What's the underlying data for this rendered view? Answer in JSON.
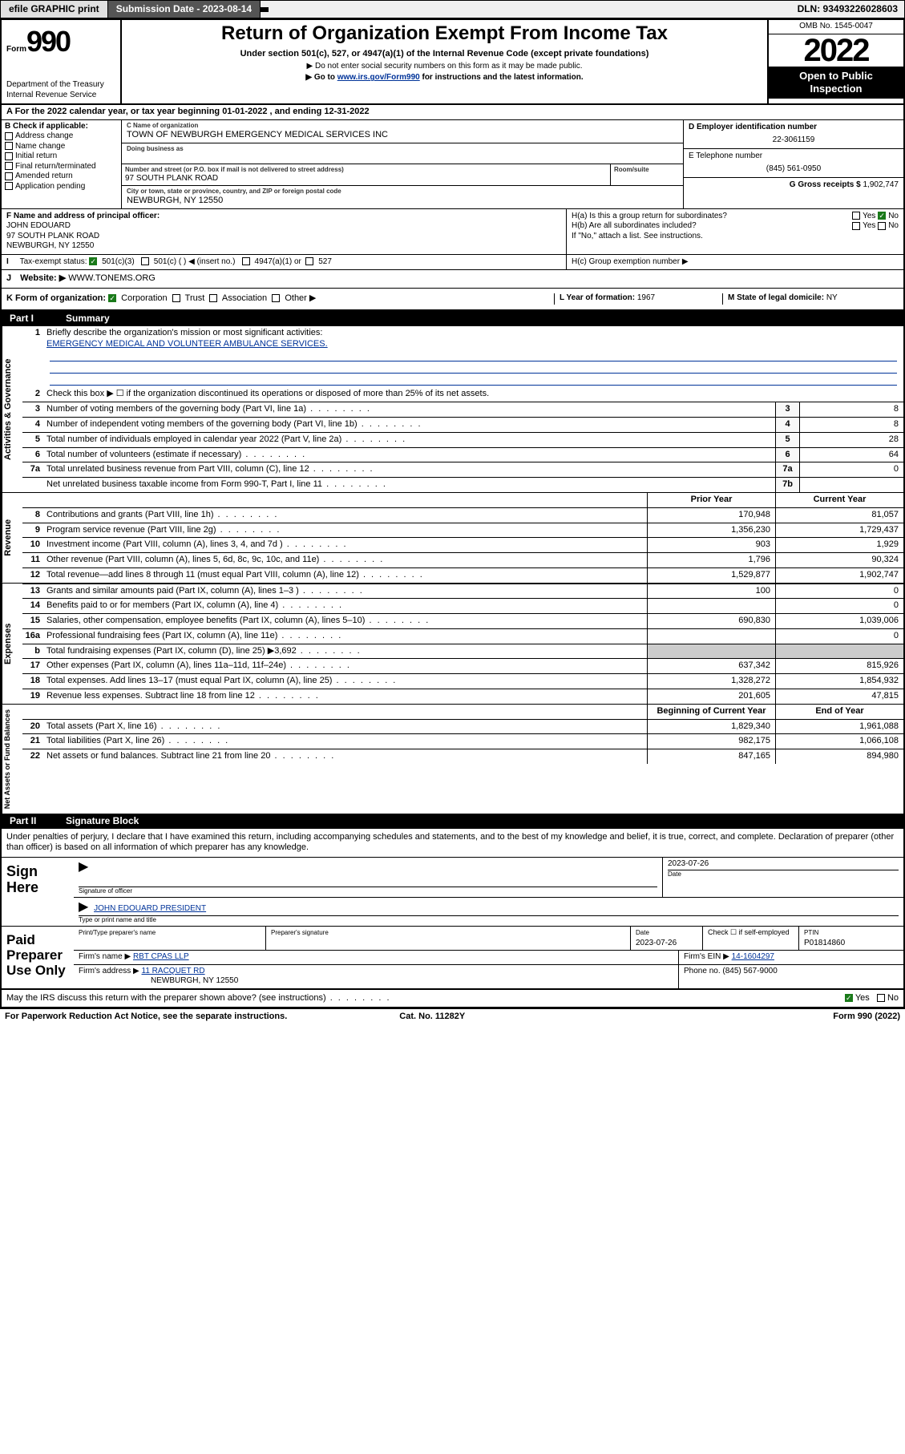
{
  "meta": {
    "omb": "OMB No. 1545-0047",
    "dln": "DLN: 93493226028603",
    "submission_label": "Submission Date - 2023-08-14",
    "efile_label": "efile GRAPHIC print",
    "tax_year": "2022",
    "open_to_public": "Open to Public Inspection"
  },
  "hdr": {
    "form_label": "Form",
    "form_no": "990",
    "dept": "Department of the Treasury",
    "irs": "Internal Revenue Service",
    "title": "Return of Organization Exempt From Income Tax",
    "sub": "Under section 501(c), 527, or 4947(a)(1) of the Internal Revenue Code (except private foundations)",
    "note1": "▶ Do not enter social security numbers on this form as it may be made public.",
    "note2_pre": "▶ Go to ",
    "note2_link": "www.irs.gov/Form990",
    "note2_post": " for instructions and the latest information."
  },
  "rowA": "A For the 2022 calendar year, or tax year beginning 01-01-2022   , and ending 12-31-2022",
  "colB": {
    "hdr": "B Check if applicable:",
    "opts": [
      "Address change",
      "Name change",
      "Initial return",
      "Final return/terminated",
      "Amended return",
      "Application pending"
    ]
  },
  "colC": {
    "name_lbl": "C Name of organization",
    "name": "TOWN OF NEWBURGH EMERGENCY MEDICAL SERVICES INC",
    "dba_lbl": "Doing business as",
    "addr_lbl": "Number and street (or P.O. box if mail is not delivered to street address)",
    "addr": "97 SOUTH PLANK ROAD",
    "room_lbl": "Room/suite",
    "city_lbl": "City or town, state or province, country, and ZIP or foreign postal code",
    "city": "NEWBURGH, NY  12550"
  },
  "colD": {
    "ein_lbl": "D Employer identification number",
    "ein": "22-3061159",
    "phone_lbl": "E Telephone number",
    "phone": "(845) 561-0950",
    "gross_lbl": "G Gross receipts $",
    "gross": "1,902,747"
  },
  "rowF": {
    "lbl": "F Name and address of principal officer:",
    "name": "JOHN EDOUARD",
    "addr1": "97 SOUTH PLANK ROAD",
    "addr2": "NEWBURGH, NY  12550"
  },
  "rowH": {
    "a": "H(a)  Is this a group return for subordinates?",
    "a_ans": "No",
    "b": "H(b)  Are all subordinates included?",
    "b_note": "If \"No,\" attach a list. See instructions.",
    "c": "H(c)  Group exemption number ▶"
  },
  "rowI": {
    "lbl": "Tax-exempt status:",
    "c3": "501(c)(3)",
    "cins": "501(c) (  ) ◀ (insert no.)",
    "c4947": "4947(a)(1) or",
    "c527": "527"
  },
  "rowJ": {
    "lbl": "Website: ▶",
    "val": "WWW.TONEMS.ORG"
  },
  "rowK": {
    "lbl": "K Form of organization:",
    "corp": "Corporation",
    "trust": "Trust",
    "assoc": "Association",
    "other": "Other ▶"
  },
  "rowL": {
    "lbl": "L Year of formation:",
    "val": "1967"
  },
  "rowM": {
    "lbl": "M State of legal domicile:",
    "val": "NY"
  },
  "parts": {
    "p1": "Part I",
    "p1t": "Summary",
    "p2": "Part II",
    "p2t": "Signature Block"
  },
  "summary": {
    "tabs": [
      "Activities & Governance",
      "Revenue",
      "Expenses",
      "Net Assets or Fund Balances"
    ],
    "q1": "Briefly describe the organization's mission or most significant activities:",
    "mission": "EMERGENCY MEDICAL AND VOLUNTEER AMBULANCE SERVICES.",
    "q2": "Check this box ▶ ☐  if the organization discontinued its operations or disposed of more than 25% of its net assets.",
    "lines_ag": [
      {
        "n": "3",
        "d": "Number of voting members of the governing body (Part VI, line 1a)",
        "box": "3",
        "v": "8"
      },
      {
        "n": "4",
        "d": "Number of independent voting members of the governing body (Part VI, line 1b)",
        "box": "4",
        "v": "8"
      },
      {
        "n": "5",
        "d": "Total number of individuals employed in calendar year 2022 (Part V, line 2a)",
        "box": "5",
        "v": "28"
      },
      {
        "n": "6",
        "d": "Total number of volunteers (estimate if necessary)",
        "box": "6",
        "v": "64"
      },
      {
        "n": "7a",
        "d": "Total unrelated business revenue from Part VIII, column (C), line 12",
        "box": "7a",
        "v": "0"
      },
      {
        "n": "",
        "d": "Net unrelated business taxable income from Form 990-T, Part I, line 11",
        "box": "7b",
        "v": ""
      }
    ],
    "col_prior": "Prior Year",
    "col_curr": "Current Year",
    "col_beg": "Beginning of Current Year",
    "col_end": "End of Year",
    "lines_rev": [
      {
        "n": "8",
        "d": "Contributions and grants (Part VIII, line 1h)",
        "p": "170,948",
        "c": "81,057"
      },
      {
        "n": "9",
        "d": "Program service revenue (Part VIII, line 2g)",
        "p": "1,356,230",
        "c": "1,729,437"
      },
      {
        "n": "10",
        "d": "Investment income (Part VIII, column (A), lines 3, 4, and 7d )",
        "p": "903",
        "c": "1,929"
      },
      {
        "n": "11",
        "d": "Other revenue (Part VIII, column (A), lines 5, 6d, 8c, 9c, 10c, and 11e)",
        "p": "1,796",
        "c": "90,324"
      },
      {
        "n": "12",
        "d": "Total revenue—add lines 8 through 11 (must equal Part VIII, column (A), line 12)",
        "p": "1,529,877",
        "c": "1,902,747"
      }
    ],
    "lines_exp": [
      {
        "n": "13",
        "d": "Grants and similar amounts paid (Part IX, column (A), lines 1–3 )",
        "p": "100",
        "c": "0"
      },
      {
        "n": "14",
        "d": "Benefits paid to or for members (Part IX, column (A), line 4)",
        "p": "",
        "c": "0"
      },
      {
        "n": "15",
        "d": "Salaries, other compensation, employee benefits (Part IX, column (A), lines 5–10)",
        "p": "690,830",
        "c": "1,039,006"
      },
      {
        "n": "16a",
        "d": "Professional fundraising fees (Part IX, column (A), line 11e)",
        "p": "",
        "c": "0"
      },
      {
        "n": "b",
        "d": "Total fundraising expenses (Part IX, column (D), line 25) ▶3,692",
        "p": "shade",
        "c": "shade"
      },
      {
        "n": "17",
        "d": "Other expenses (Part IX, column (A), lines 11a–11d, 11f–24e)",
        "p": "637,342",
        "c": "815,926"
      },
      {
        "n": "18",
        "d": "Total expenses. Add lines 13–17 (must equal Part IX, column (A), line 25)",
        "p": "1,328,272",
        "c": "1,854,932"
      },
      {
        "n": "19",
        "d": "Revenue less expenses. Subtract line 18 from line 12",
        "p": "201,605",
        "c": "47,815"
      }
    ],
    "lines_na": [
      {
        "n": "20",
        "d": "Total assets (Part X, line 16)",
        "p": "1,829,340",
        "c": "1,961,088"
      },
      {
        "n": "21",
        "d": "Total liabilities (Part X, line 26)",
        "p": "982,175",
        "c": "1,066,108"
      },
      {
        "n": "22",
        "d": "Net assets or fund balances. Subtract line 21 from line 20",
        "p": "847,165",
        "c": "894,980"
      }
    ]
  },
  "sig": {
    "decl": "Under penalties of perjury, I declare that I have examined this return, including accompanying schedules and statements, and to the best of my knowledge and belief, it is true, correct, and complete. Declaration of preparer (other than officer) is based on all information of which preparer has any knowledge.",
    "sign_here": "Sign Here",
    "sig_officer_lbl": "Signature of officer",
    "date_lbl": "Date",
    "sig_date": "2023-07-26",
    "name_title_lbl": "Type or print name and title",
    "name_title": "JOHN EDOUARD PRESIDENT",
    "paid_hdr": "Paid Preparer Use Only",
    "print_name_lbl": "Print/Type preparer's name",
    "prep_sig_lbl": "Preparer's signature",
    "prep_date_lbl": "Date",
    "prep_date": "2023-07-26",
    "self_emp_lbl": "Check ☐ if self-employed",
    "ptin_lbl": "PTIN",
    "ptin": "P01814860",
    "firm_name_lbl": "Firm's name    ▶",
    "firm_name": "RBT CPAS LLP",
    "firm_ein_lbl": "Firm's EIN ▶",
    "firm_ein": "14-1604297",
    "firm_addr_lbl": "Firm's address ▶",
    "firm_addr1": "11 RACQUET RD",
    "firm_addr2": "NEWBURGH, NY  12550",
    "firm_phone_lbl": "Phone no.",
    "firm_phone": "(845) 567-9000",
    "may_irs": "May the IRS discuss this return with the preparer shown above? (see instructions)",
    "may_yes": "Yes",
    "may_no": "No"
  },
  "footer": {
    "left": "For Paperwork Reduction Act Notice, see the separate instructions.",
    "mid": "Cat. No. 11282Y",
    "right": "Form 990 (2022)"
  },
  "colors": {
    "link": "#003399",
    "check_green": "#1a7a1a",
    "shade": "#cccccc"
  }
}
